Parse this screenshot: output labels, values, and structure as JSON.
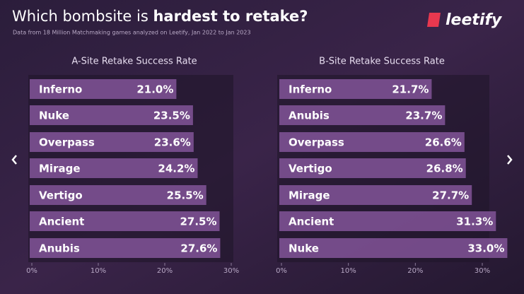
{
  "header": {
    "title_start": "Which bombsite is ",
    "title_bold": "hardest to retake?",
    "subtitle": "Data from 18 Million Matchmaking games analyzed on Leetify, Jan 2022 to Jan 2023",
    "logo": "leetify"
  },
  "chart_data": [
    {
      "type": "bar",
      "orientation": "horizontal",
      "title": "A-Site Retake Success Rate",
      "categories": [
        "Inferno",
        "Nuke",
        "Overpass",
        "Mirage",
        "Vertigo",
        "Ancient",
        "Anubis"
      ],
      "values": [
        21.0,
        23.5,
        23.6,
        24.2,
        25.5,
        27.5,
        27.6
      ],
      "value_labels": [
        "21.0%",
        "23.5%",
        "23.6%",
        "24.2%",
        "25.5%",
        "27.5%",
        "27.6%"
      ],
      "color": "#7b4f90",
      "xlim": [
        0,
        30
      ],
      "xticks": [
        {
          "value": 0,
          "label": "0%"
        },
        {
          "value": 10,
          "label": "10%"
        },
        {
          "value": 20,
          "label": "20%"
        },
        {
          "value": 30,
          "label": "30%"
        }
      ]
    },
    {
      "type": "bar",
      "orientation": "horizontal",
      "title": "B-Site Retake Success Rate",
      "categories": [
        "Inferno",
        "Anubis",
        "Overpass",
        "Vertigo",
        "Mirage",
        "Ancient",
        "Nuke"
      ],
      "values": [
        21.7,
        23.7,
        26.6,
        26.8,
        27.7,
        31.3,
        33.0
      ],
      "value_labels": [
        "21.7%",
        "23.7%",
        "26.6%",
        "26.8%",
        "27.7%",
        "31.3%",
        "33.0%"
      ],
      "color": "#7b4f90",
      "xlim": [
        0,
        30
      ],
      "xticks": [
        {
          "value": 0,
          "label": "0%"
        },
        {
          "value": 10,
          "label": "10%"
        },
        {
          "value": 20,
          "label": "20%"
        },
        {
          "value": 30,
          "label": "30%"
        }
      ]
    }
  ]
}
